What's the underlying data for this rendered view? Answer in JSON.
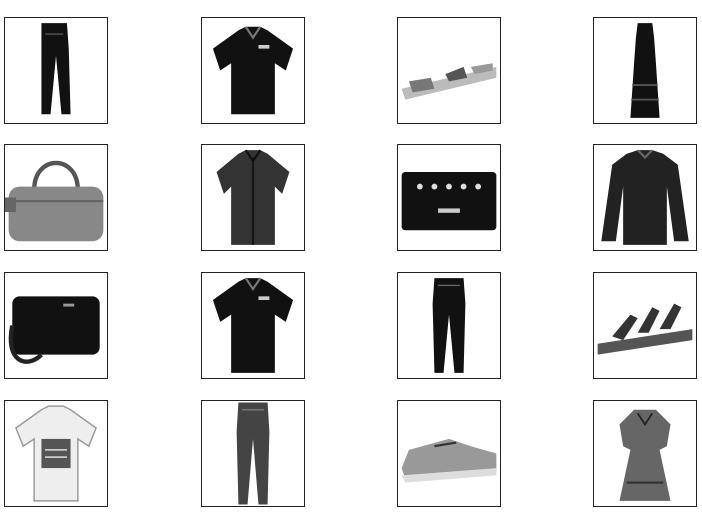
{
  "grid": {
    "rows": 4,
    "columns": 4,
    "images": [
      {
        "item": "trouser"
      },
      {
        "item": "t-shirt"
      },
      {
        "item": "sandal"
      },
      {
        "item": "dress"
      },
      {
        "item": "bag"
      },
      {
        "item": "shirt"
      },
      {
        "item": "bag"
      },
      {
        "item": "pullover"
      },
      {
        "item": "bag"
      },
      {
        "item": "t-shirt"
      },
      {
        "item": "trouser"
      },
      {
        "item": "sandal"
      },
      {
        "item": "t-shirt"
      },
      {
        "item": "trouser"
      },
      {
        "item": "sneaker"
      },
      {
        "item": "dress"
      }
    ]
  }
}
